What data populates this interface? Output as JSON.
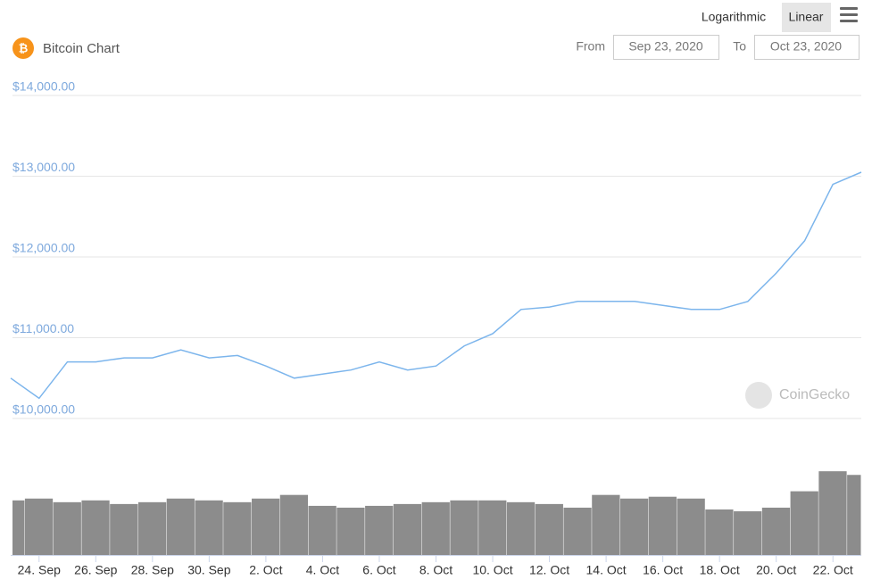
{
  "chart_data": {
    "type": "line",
    "title": "Bitcoin Chart",
    "categories": [
      null,
      "24. Sep",
      null,
      "26. Sep",
      null,
      "28. Sep",
      null,
      "30. Sep",
      null,
      "2. Oct",
      null,
      "4. Oct",
      null,
      "6. Oct",
      null,
      "8. Oct",
      null,
      "10. Oct",
      null,
      "12. Oct",
      null,
      "14. Oct",
      null,
      "16. Oct",
      null,
      "18. Oct",
      null,
      "20. Oct",
      null,
      "22. Oct",
      null
    ],
    "series": [
      {
        "color": "#7cb5ec",
        "values": [
          10500,
          10250,
          10700,
          10700,
          10750,
          10750,
          10850,
          10750,
          10780,
          10650,
          10500,
          10550,
          10600,
          10700,
          10600,
          10650,
          10900,
          11050,
          11350,
          11380,
          11450,
          11450,
          11450,
          11400,
          11350,
          11350,
          11450,
          11800,
          12200,
          12900,
          13050
        ]
      },
      {
        "type": "bar",
        "axis": "y2",
        "color": "#8c8c8c",
        "values": [
          60,
          62,
          58,
          60,
          56,
          58,
          62,
          60,
          58,
          62,
          66,
          54,
          52,
          54,
          56,
          58,
          60,
          60,
          58,
          56,
          52,
          66,
          62,
          64,
          62,
          50,
          48,
          52,
          70,
          92,
          88
        ]
      }
    ],
    "ylim": [
      10000,
      14000
    ],
    "yticks": [
      {
        "value": 10000,
        "label": "$10,000.00"
      },
      {
        "value": 11000,
        "label": "$11,000.00"
      },
      {
        "value": 12000,
        "label": "$12,000.00"
      },
      {
        "value": 13000,
        "label": "$13,000.00"
      },
      {
        "value": 14000,
        "label": "$14,000.00"
      }
    ],
    "y2lim": [
      0,
      100
    ],
    "log_scale": false,
    "grid": true
  },
  "controls": {
    "scale_options": [
      "Logarithmic",
      "Linear"
    ],
    "from_label": "From",
    "from": "Sep 23, 2020",
    "to_label": "To",
    "to": "Oct 23, 2020"
  },
  "watermark": "CoinGecko"
}
